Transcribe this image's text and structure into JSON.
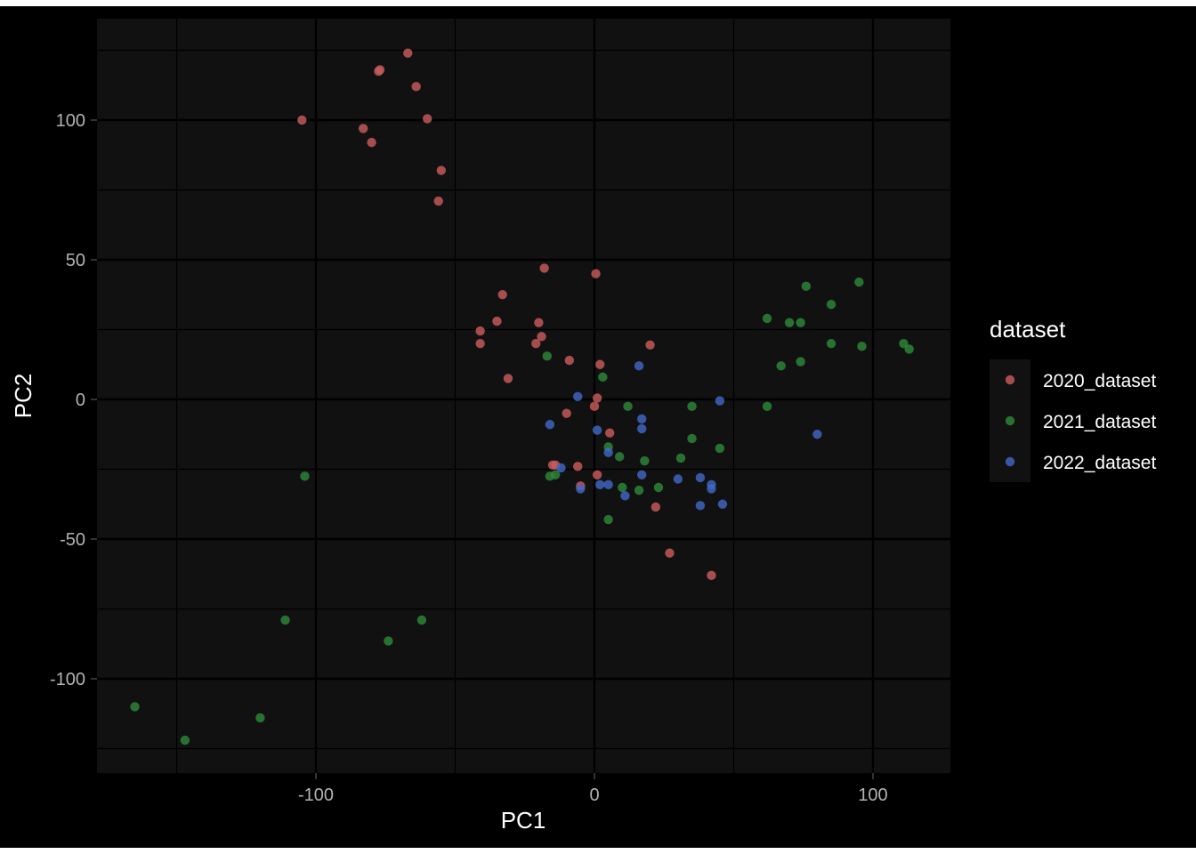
{
  "chart_data": {
    "type": "scatter",
    "title": "",
    "xlabel": "PC1",
    "ylabel": "PC2",
    "xlim": [
      -165,
      128
    ],
    "ylim": [
      -134,
      136
    ],
    "x_ticks": [
      -100,
      0,
      100
    ],
    "y_ticks": [
      -100,
      -50,
      0,
      50,
      100
    ],
    "x_tick_labels": [
      "-100",
      "0",
      "100"
    ],
    "y_tick_labels": [
      "-100",
      "-50",
      "0",
      "50",
      "100"
    ],
    "grid": true,
    "legend": {
      "title": "dataset",
      "position": "right"
    },
    "colors": {
      "background": "#000000",
      "panel": "#111111",
      "grid": "#000000"
    },
    "series": [
      {
        "name": "2020_dataset",
        "color": "#cd5c5c",
        "points": [
          {
            "x": -67,
            "y": 124
          },
          {
            "x": -77,
            "y": 118
          },
          {
            "x": -77.5,
            "y": 117.5
          },
          {
            "x": -64,
            "y": 112
          },
          {
            "x": -105,
            "y": 100
          },
          {
            "x": -60,
            "y": 100.5
          },
          {
            "x": -83,
            "y": 97
          },
          {
            "x": -80,
            "y": 92
          },
          {
            "x": -55,
            "y": 82
          },
          {
            "x": -56,
            "y": 71
          },
          {
            "x": -18,
            "y": 47
          },
          {
            "x": 0.5,
            "y": 45
          },
          {
            "x": -33,
            "y": 37.5
          },
          {
            "x": -35,
            "y": 28
          },
          {
            "x": -20,
            "y": 27.5
          },
          {
            "x": -41,
            "y": 24.5
          },
          {
            "x": -19,
            "y": 22.5
          },
          {
            "x": -41,
            "y": 20
          },
          {
            "x": -21,
            "y": 20
          },
          {
            "x": 20,
            "y": 19.5
          },
          {
            "x": -9,
            "y": 14
          },
          {
            "x": 2,
            "y": 12.5
          },
          {
            "x": -31,
            "y": 7.5
          },
          {
            "x": 1,
            "y": 0.5
          },
          {
            "x": 0,
            "y": -2.5
          },
          {
            "x": -10,
            "y": -5
          },
          {
            "x": 5.5,
            "y": -12
          },
          {
            "x": -14,
            "y": -23.5
          },
          {
            "x": -15,
            "y": -23.5
          },
          {
            "x": -6,
            "y": -24
          },
          {
            "x": 1,
            "y": -27
          },
          {
            "x": -5,
            "y": -31
          },
          {
            "x": 22,
            "y": -38.5
          },
          {
            "x": 27,
            "y": -55
          },
          {
            "x": 42,
            "y": -63
          }
        ]
      },
      {
        "name": "2021_dataset",
        "color": "#2e8b3a",
        "points": [
          {
            "x": 76,
            "y": 40.5
          },
          {
            "x": 95,
            "y": 42
          },
          {
            "x": 85,
            "y": 34
          },
          {
            "x": 62,
            "y": 29
          },
          {
            "x": 70,
            "y": 27.5
          },
          {
            "x": 74,
            "y": 27.5
          },
          {
            "x": 85,
            "y": 20
          },
          {
            "x": 96,
            "y": 19
          },
          {
            "x": 111,
            "y": 20
          },
          {
            "x": 113,
            "y": 18
          },
          {
            "x": 74,
            "y": 13.5
          },
          {
            "x": 67,
            "y": 12
          },
          {
            "x": -17,
            "y": 15.5
          },
          {
            "x": 3,
            "y": 8
          },
          {
            "x": 12,
            "y": -2.5
          },
          {
            "x": 35,
            "y": -2.5
          },
          {
            "x": 62,
            "y": -2.5
          },
          {
            "x": 35,
            "y": -14
          },
          {
            "x": 5,
            "y": -17
          },
          {
            "x": 45,
            "y": -17.5
          },
          {
            "x": 9,
            "y": -20.5
          },
          {
            "x": 31,
            "y": -21
          },
          {
            "x": 18,
            "y": -22
          },
          {
            "x": -16,
            "y": -27.5
          },
          {
            "x": -14,
            "y": -27
          },
          {
            "x": -104,
            "y": -27.5
          },
          {
            "x": 23,
            "y": -31.5
          },
          {
            "x": 10,
            "y": -31.5
          },
          {
            "x": 16,
            "y": -32.5
          },
          {
            "x": 5,
            "y": -43
          },
          {
            "x": -111,
            "y": -79
          },
          {
            "x": -62,
            "y": -79
          },
          {
            "x": -74,
            "y": -86.5
          },
          {
            "x": -165,
            "y": -110
          },
          {
            "x": -120,
            "y": -114
          },
          {
            "x": -147,
            "y": -122
          }
        ]
      },
      {
        "name": "2022_dataset",
        "color": "#4169c8",
        "points": [
          {
            "x": 16,
            "y": 12
          },
          {
            "x": -6,
            "y": 1
          },
          {
            "x": 45,
            "y": -0.5
          },
          {
            "x": 17,
            "y": -7
          },
          {
            "x": -16,
            "y": -9
          },
          {
            "x": 17,
            "y": -10.5
          },
          {
            "x": 1,
            "y": -11
          },
          {
            "x": 5,
            "y": -19
          },
          {
            "x": 80,
            "y": -12.5
          },
          {
            "x": -12,
            "y": -24.5
          },
          {
            "x": 17,
            "y": -27
          },
          {
            "x": 30,
            "y": -28.5
          },
          {
            "x": 38,
            "y": -28
          },
          {
            "x": 42,
            "y": -30.5
          },
          {
            "x": 42,
            "y": -32
          },
          {
            "x": 2,
            "y": -30.5
          },
          {
            "x": 5,
            "y": -30.5
          },
          {
            "x": -5,
            "y": -32
          },
          {
            "x": 11,
            "y": -34.5
          },
          {
            "x": 38,
            "y": -38
          },
          {
            "x": 46,
            "y": -37.5
          }
        ]
      }
    ]
  }
}
